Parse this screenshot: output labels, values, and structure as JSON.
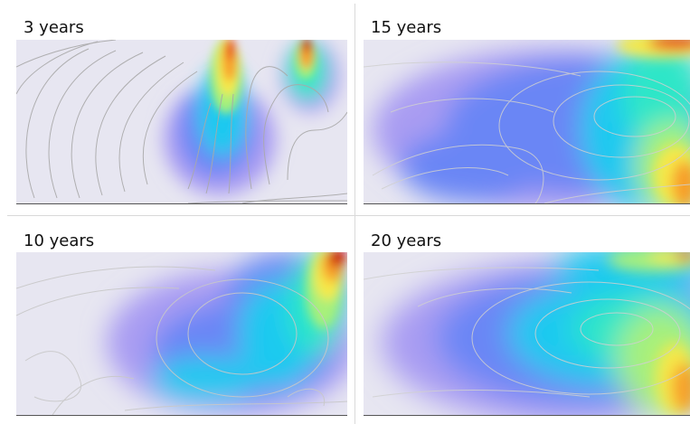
{
  "panels": [
    {
      "label": "3 years",
      "scene": "early"
    },
    {
      "label": "15 years",
      "scene": "mid"
    },
    {
      "label": "10 years",
      "scene": "ten"
    },
    {
      "label": "20 years",
      "scene": "late"
    }
  ],
  "colors": {
    "background": "#e7e6f1",
    "streamline": "#a9a9a9",
    "colormap": [
      "#e7e6f1",
      "#a99cf2",
      "#6b86f5",
      "#1bc9f0",
      "#2fe6c8",
      "#a8f07a",
      "#f6e84a",
      "#f79f2a",
      "#e8421d",
      "#cc0000"
    ]
  }
}
